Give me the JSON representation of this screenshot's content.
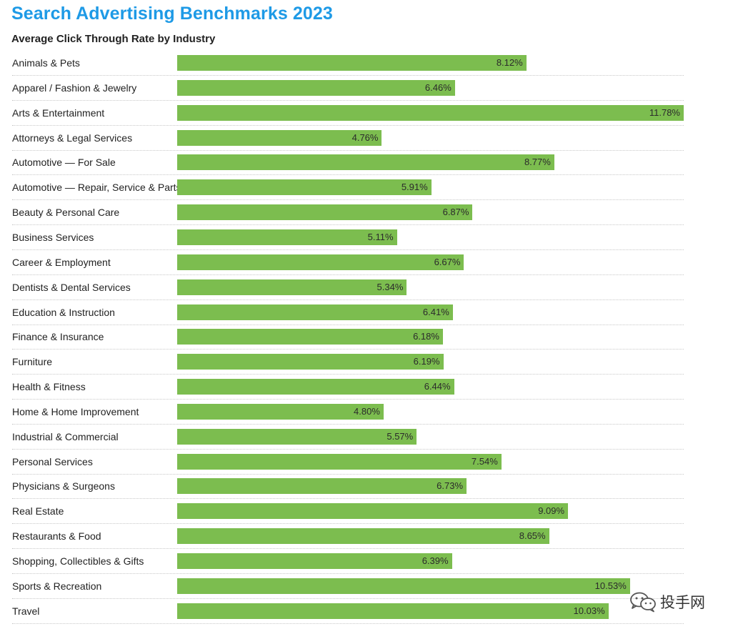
{
  "header": {
    "title": "Search Advertising Benchmarks 2023",
    "subtitle": "Average Click Through Rate by Industry"
  },
  "colors": {
    "title": "#1e9ae6",
    "bar": "#7cbd4f",
    "separator": "#c8c8c8"
  },
  "chart_data": {
    "type": "bar",
    "orientation": "horizontal",
    "title": "Search Advertising Benchmarks 2023",
    "subtitle": "Average Click Through Rate by Industry",
    "value_suffix": "%",
    "xlim": [
      0,
      11.78
    ],
    "grid": false,
    "categories": [
      "Animals & Pets",
      "Apparel / Fashion & Jewelry",
      "Arts & Entertainment",
      "Attorneys & Legal Services",
      "Automotive — For Sale",
      "Automotive — Repair, Service & Parts",
      "Beauty & Personal Care",
      "Business Services",
      "Career & Employment",
      "Dentists & Dental Services",
      "Education & Instruction",
      "Finance & Insurance",
      "Furniture",
      "Health & Fitness",
      "Home & Home Improvement",
      "Industrial & Commercial",
      "Personal Services",
      "Physicians & Surgeons",
      "Real Estate",
      "Restaurants & Food",
      "Shopping, Collectibles & Gifts",
      "Sports & Recreation",
      "Travel"
    ],
    "values": [
      8.12,
      6.46,
      11.78,
      4.76,
      8.77,
      5.91,
      6.87,
      5.11,
      6.67,
      5.34,
      6.41,
      6.18,
      6.19,
      6.44,
      4.8,
      5.57,
      7.54,
      6.73,
      9.09,
      8.65,
      6.39,
      10.53,
      10.03
    ],
    "data_labels": [
      "8.12%",
      "6.46%",
      "11.78%",
      "4.76%",
      "8.77%",
      "5.91%",
      "6.87%",
      "5.11%",
      "6.67%",
      "5.34%",
      "6.41%",
      "6.18%",
      "6.19%",
      "6.44%",
      "4.80%",
      "5.57%",
      "7.54%",
      "6.73%",
      "9.09%",
      "8.65%",
      "6.39%",
      "10.53%",
      "10.03%"
    ]
  },
  "watermark": {
    "icon": "wechat-icon",
    "text": "投手网"
  }
}
